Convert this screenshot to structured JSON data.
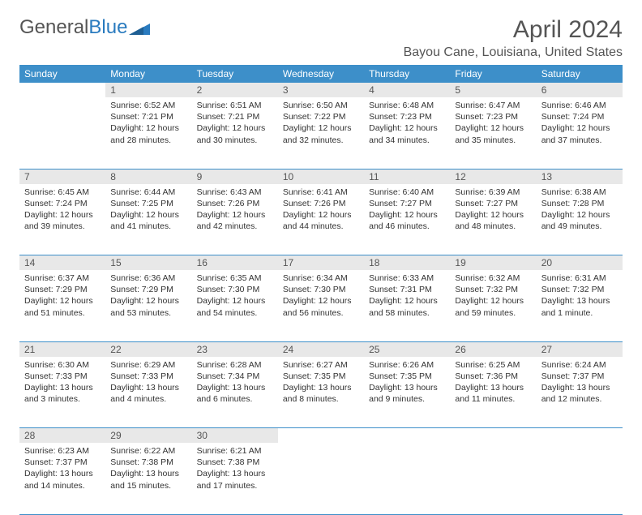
{
  "logo": {
    "text1": "General",
    "text2": "Blue"
  },
  "title": "April 2024",
  "location": "Bayou Cane, Louisiana, United States",
  "colors": {
    "header_bg": "#3d8fc9",
    "header_text": "#ffffff",
    "daynum_bg": "#e8e8e8",
    "border": "#3d8fc9",
    "text": "#333333",
    "title_text": "#555555"
  },
  "weekdays": [
    "Sunday",
    "Monday",
    "Tuesday",
    "Wednesday",
    "Thursday",
    "Friday",
    "Saturday"
  ],
  "weeks": [
    [
      null,
      {
        "n": "1",
        "sr": "Sunrise: 6:52 AM",
        "ss": "Sunset: 7:21 PM",
        "dl": "Daylight: 12 hours and 28 minutes."
      },
      {
        "n": "2",
        "sr": "Sunrise: 6:51 AM",
        "ss": "Sunset: 7:21 PM",
        "dl": "Daylight: 12 hours and 30 minutes."
      },
      {
        "n": "3",
        "sr": "Sunrise: 6:50 AM",
        "ss": "Sunset: 7:22 PM",
        "dl": "Daylight: 12 hours and 32 minutes."
      },
      {
        "n": "4",
        "sr": "Sunrise: 6:48 AM",
        "ss": "Sunset: 7:23 PM",
        "dl": "Daylight: 12 hours and 34 minutes."
      },
      {
        "n": "5",
        "sr": "Sunrise: 6:47 AM",
        "ss": "Sunset: 7:23 PM",
        "dl": "Daylight: 12 hours and 35 minutes."
      },
      {
        "n": "6",
        "sr": "Sunrise: 6:46 AM",
        "ss": "Sunset: 7:24 PM",
        "dl": "Daylight: 12 hours and 37 minutes."
      }
    ],
    [
      {
        "n": "7",
        "sr": "Sunrise: 6:45 AM",
        "ss": "Sunset: 7:24 PM",
        "dl": "Daylight: 12 hours and 39 minutes."
      },
      {
        "n": "8",
        "sr": "Sunrise: 6:44 AM",
        "ss": "Sunset: 7:25 PM",
        "dl": "Daylight: 12 hours and 41 minutes."
      },
      {
        "n": "9",
        "sr": "Sunrise: 6:43 AM",
        "ss": "Sunset: 7:26 PM",
        "dl": "Daylight: 12 hours and 42 minutes."
      },
      {
        "n": "10",
        "sr": "Sunrise: 6:41 AM",
        "ss": "Sunset: 7:26 PM",
        "dl": "Daylight: 12 hours and 44 minutes."
      },
      {
        "n": "11",
        "sr": "Sunrise: 6:40 AM",
        "ss": "Sunset: 7:27 PM",
        "dl": "Daylight: 12 hours and 46 minutes."
      },
      {
        "n": "12",
        "sr": "Sunrise: 6:39 AM",
        "ss": "Sunset: 7:27 PM",
        "dl": "Daylight: 12 hours and 48 minutes."
      },
      {
        "n": "13",
        "sr": "Sunrise: 6:38 AM",
        "ss": "Sunset: 7:28 PM",
        "dl": "Daylight: 12 hours and 49 minutes."
      }
    ],
    [
      {
        "n": "14",
        "sr": "Sunrise: 6:37 AM",
        "ss": "Sunset: 7:29 PM",
        "dl": "Daylight: 12 hours and 51 minutes."
      },
      {
        "n": "15",
        "sr": "Sunrise: 6:36 AM",
        "ss": "Sunset: 7:29 PM",
        "dl": "Daylight: 12 hours and 53 minutes."
      },
      {
        "n": "16",
        "sr": "Sunrise: 6:35 AM",
        "ss": "Sunset: 7:30 PM",
        "dl": "Daylight: 12 hours and 54 minutes."
      },
      {
        "n": "17",
        "sr": "Sunrise: 6:34 AM",
        "ss": "Sunset: 7:30 PM",
        "dl": "Daylight: 12 hours and 56 minutes."
      },
      {
        "n": "18",
        "sr": "Sunrise: 6:33 AM",
        "ss": "Sunset: 7:31 PM",
        "dl": "Daylight: 12 hours and 58 minutes."
      },
      {
        "n": "19",
        "sr": "Sunrise: 6:32 AM",
        "ss": "Sunset: 7:32 PM",
        "dl": "Daylight: 12 hours and 59 minutes."
      },
      {
        "n": "20",
        "sr": "Sunrise: 6:31 AM",
        "ss": "Sunset: 7:32 PM",
        "dl": "Daylight: 13 hours and 1 minute."
      }
    ],
    [
      {
        "n": "21",
        "sr": "Sunrise: 6:30 AM",
        "ss": "Sunset: 7:33 PM",
        "dl": "Daylight: 13 hours and 3 minutes."
      },
      {
        "n": "22",
        "sr": "Sunrise: 6:29 AM",
        "ss": "Sunset: 7:33 PM",
        "dl": "Daylight: 13 hours and 4 minutes."
      },
      {
        "n": "23",
        "sr": "Sunrise: 6:28 AM",
        "ss": "Sunset: 7:34 PM",
        "dl": "Daylight: 13 hours and 6 minutes."
      },
      {
        "n": "24",
        "sr": "Sunrise: 6:27 AM",
        "ss": "Sunset: 7:35 PM",
        "dl": "Daylight: 13 hours and 8 minutes."
      },
      {
        "n": "25",
        "sr": "Sunrise: 6:26 AM",
        "ss": "Sunset: 7:35 PM",
        "dl": "Daylight: 13 hours and 9 minutes."
      },
      {
        "n": "26",
        "sr": "Sunrise: 6:25 AM",
        "ss": "Sunset: 7:36 PM",
        "dl": "Daylight: 13 hours and 11 minutes."
      },
      {
        "n": "27",
        "sr": "Sunrise: 6:24 AM",
        "ss": "Sunset: 7:37 PM",
        "dl": "Daylight: 13 hours and 12 minutes."
      }
    ],
    [
      {
        "n": "28",
        "sr": "Sunrise: 6:23 AM",
        "ss": "Sunset: 7:37 PM",
        "dl": "Daylight: 13 hours and 14 minutes."
      },
      {
        "n": "29",
        "sr": "Sunrise: 6:22 AM",
        "ss": "Sunset: 7:38 PM",
        "dl": "Daylight: 13 hours and 15 minutes."
      },
      {
        "n": "30",
        "sr": "Sunrise: 6:21 AM",
        "ss": "Sunset: 7:38 PM",
        "dl": "Daylight: 13 hours and 17 minutes."
      },
      null,
      null,
      null,
      null
    ]
  ]
}
